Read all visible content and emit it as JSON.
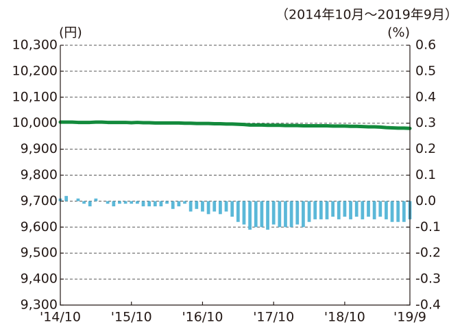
{
  "chart_data": {
    "type": "bar_line",
    "subtitle": "（2014年10月～2019年9月）",
    "y_label": "(円)",
    "y2_label": "(%)",
    "categories": [
      "'14/10",
      null,
      null,
      null,
      null,
      null,
      null,
      null,
      null,
      null,
      null,
      null,
      "'15/10",
      null,
      null,
      null,
      null,
      null,
      null,
      null,
      null,
      null,
      null,
      null,
      "'16/10",
      null,
      null,
      null,
      null,
      null,
      null,
      null,
      null,
      null,
      null,
      null,
      "'17/10",
      null,
      null,
      null,
      null,
      null,
      null,
      null,
      null,
      null,
      null,
      null,
      "'18/10",
      null,
      null,
      null,
      null,
      null,
      null,
      null,
      null,
      null,
      null,
      "'19/9"
    ],
    "series": [
      {
        "type": "bar",
        "axis": "y2",
        "color": "#5bb8d8",
        "values": [
          0.01,
          0.02,
          0,
          0.01,
          -0.01,
          -0.02,
          0.01,
          0,
          -0.01,
          -0.02,
          -0.01,
          -0.01,
          -0.01,
          -0.01,
          -0.02,
          -0.02,
          -0.02,
          -0.02,
          -0.01,
          -0.03,
          -0.02,
          -0.01,
          -0.04,
          -0.03,
          -0.04,
          -0.05,
          -0.04,
          -0.05,
          -0.04,
          -0.06,
          -0.08,
          -0.09,
          -0.11,
          -0.1,
          -0.1,
          -0.11,
          -0.09,
          -0.1,
          -0.1,
          -0.1,
          -0.09,
          -0.1,
          -0.08,
          -0.07,
          -0.07,
          -0.07,
          -0.06,
          -0.07,
          -0.06,
          -0.07,
          -0.06,
          -0.07,
          -0.06,
          -0.07,
          -0.06,
          -0.07,
          -0.08,
          -0.08,
          -0.08,
          -0.07
        ]
      },
      {
        "type": "line",
        "axis": "y",
        "color": "#138a3c",
        "values": [
          10004,
          10004,
          10004,
          10003,
          10003,
          10003,
          10004,
          10004,
          10003,
          10003,
          10003,
          10003,
          10002,
          10003,
          10002,
          10002,
          10001,
          10001,
          10001,
          10001,
          10001,
          10000,
          10000,
          9999,
          9999,
          9999,
          9998,
          9998,
          9997,
          9997,
          9996,
          9995,
          9993,
          9993,
          9993,
          9992,
          9992,
          9992,
          9991,
          9991,
          9991,
          9990,
          9990,
          9990,
          9990,
          9990,
          9989,
          9989,
          9989,
          9988,
          9988,
          9987,
          9986,
          9986,
          9985,
          9983,
          9982,
          9981,
          9981,
          9980
        ]
      }
    ],
    "ylim": [
      9300,
      10300
    ],
    "yticks": [
      {
        "value": 9300,
        "label": "9,300"
      },
      {
        "value": 9400,
        "label": "9,400"
      },
      {
        "value": 9500,
        "label": "9,500"
      },
      {
        "value": 9600,
        "label": "9,600"
      },
      {
        "value": 9700,
        "label": "9,700"
      },
      {
        "value": 9800,
        "label": "9,800"
      },
      {
        "value": 9900,
        "label": "9,900"
      },
      {
        "value": 10000,
        "label": "10,000"
      },
      {
        "value": 10100,
        "label": "10,100"
      },
      {
        "value": 10200,
        "label": "10,200"
      },
      {
        "value": 10300,
        "label": "10,300"
      }
    ],
    "y2lim": [
      -0.4,
      0.6
    ],
    "y2ticks": [
      -0.4,
      -0.3,
      -0.2,
      -0.1,
      {
        "value": 0,
        "label": "0.0"
      },
      0.1,
      0.2,
      0.3,
      0.4,
      0.5,
      0.6
    ],
    "grid": true
  }
}
